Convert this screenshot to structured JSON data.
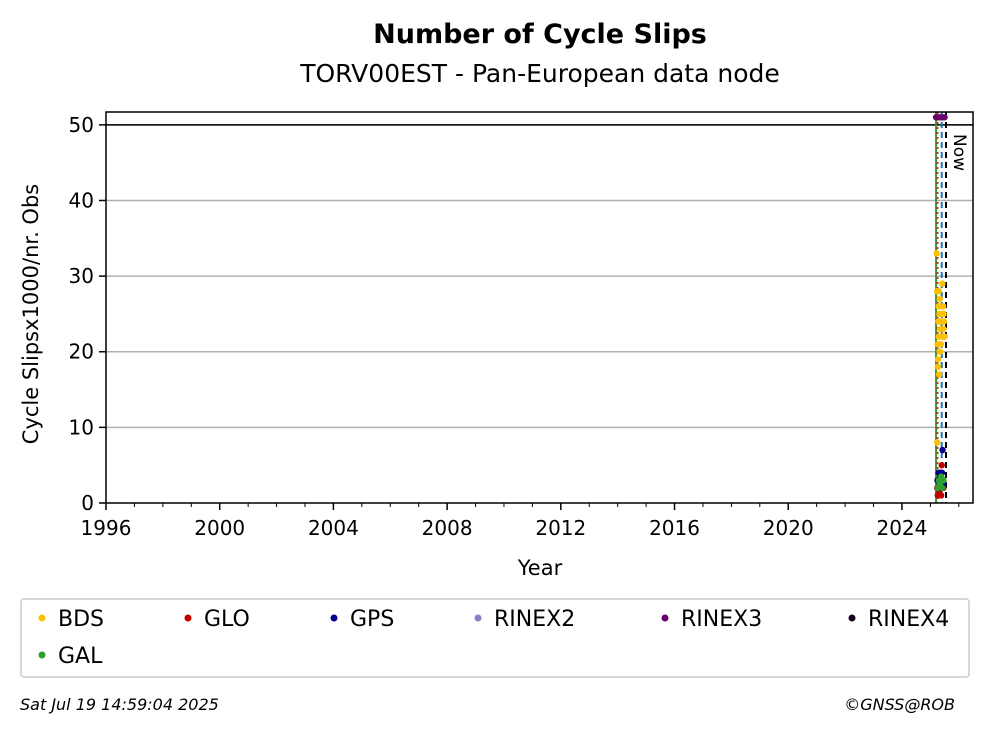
{
  "chart_data": {
    "type": "scatter",
    "title": "Number of Cycle Slips",
    "subtitle": "TORV00EST - Pan-European data node",
    "xlabel": "Year",
    "ylabel": "Cycle Slipsx1000/nr. Obs",
    "xlim": [
      1996,
      2026.5
    ],
    "ylim": [
      0,
      51.7
    ],
    "x_ticks": [
      1996,
      2000,
      2004,
      2008,
      2012,
      2016,
      2020,
      2024
    ],
    "y_ticks": [
      0,
      10,
      20,
      30,
      40,
      50
    ],
    "grid": "horizontal",
    "threshold_line": 50,
    "now_marker": {
      "label": "Now",
      "x": 2025.55
    },
    "vertical_lines": [
      {
        "x": 2025.2,
        "color": "#2ca02c",
        "style": "solid"
      },
      {
        "x": 2025.25,
        "color": "#d62728",
        "style": "dotted"
      },
      {
        "x": 2025.4,
        "color": "#1f77b4",
        "style": "dashed"
      },
      {
        "x": 2025.55,
        "color": "#000000",
        "style": "dashed"
      }
    ],
    "legend_position": "bottom",
    "series": [
      {
        "name": "BDS",
        "color": "#ffc000",
        "points": [
          [
            2025.22,
            33
          ],
          [
            2025.24,
            28
          ],
          [
            2025.25,
            21
          ],
          [
            2025.27,
            19
          ],
          [
            2025.28,
            24
          ],
          [
            2025.29,
            26
          ],
          [
            2025.3,
            22
          ],
          [
            2025.31,
            17
          ],
          [
            2025.32,
            25
          ],
          [
            2025.33,
            27
          ],
          [
            2025.34,
            20
          ],
          [
            2025.35,
            23
          ],
          [
            2025.36,
            24
          ],
          [
            2025.37,
            21
          ],
          [
            2025.38,
            26
          ],
          [
            2025.39,
            22
          ],
          [
            2025.4,
            25
          ],
          [
            2025.41,
            23
          ],
          [
            2025.42,
            29
          ],
          [
            2025.43,
            24
          ],
          [
            2025.44,
            22
          ],
          [
            2025.45,
            26
          ],
          [
            2025.46,
            23
          ],
          [
            2025.47,
            25
          ],
          [
            2025.48,
            24
          ],
          [
            2025.5,
            22
          ],
          [
            2025.24,
            8
          ],
          [
            2025.26,
            18
          ],
          [
            2025.3,
            28
          ],
          [
            2025.33,
            20
          ]
        ]
      },
      {
        "name": "GLO",
        "color": "#c00000",
        "points": [
          [
            2025.24,
            2
          ],
          [
            2025.26,
            1
          ],
          [
            2025.28,
            3
          ],
          [
            2025.3,
            2
          ],
          [
            2025.32,
            1.5
          ],
          [
            2025.34,
            2.5
          ],
          [
            2025.36,
            4
          ],
          [
            2025.38,
            1
          ],
          [
            2025.4,
            5
          ],
          [
            2025.42,
            2
          ],
          [
            2025.44,
            3
          ],
          [
            2025.46,
            2
          ]
        ]
      },
      {
        "name": "GPS",
        "color": "#00008b",
        "points": [
          [
            2025.25,
            3
          ],
          [
            2025.27,
            2
          ],
          [
            2025.29,
            4
          ],
          [
            2025.31,
            3
          ],
          [
            2025.33,
            2.5
          ],
          [
            2025.35,
            3.5
          ],
          [
            2025.37,
            2
          ],
          [
            2025.39,
            3
          ],
          [
            2025.41,
            4
          ],
          [
            2025.43,
            7
          ],
          [
            2025.45,
            3
          ],
          [
            2025.47,
            2.5
          ]
        ]
      },
      {
        "name": "RINEX2",
        "color": "#8c7fc4",
        "points": []
      },
      {
        "name": "RINEX3",
        "color": "#6a006a",
        "points": [
          [
            2025.2,
            51
          ],
          [
            2025.26,
            51
          ],
          [
            2025.32,
            51
          ],
          [
            2025.38,
            51
          ],
          [
            2025.44,
            51
          ],
          [
            2025.5,
            51
          ]
        ]
      },
      {
        "name": "RINEX4",
        "color": "#1a0020",
        "points": []
      },
      {
        "name": "GAL",
        "color": "#2ca02c",
        "points": [
          [
            2025.26,
            2
          ],
          [
            2025.3,
            3
          ],
          [
            2025.34,
            2.5
          ],
          [
            2025.38,
            3.5
          ],
          [
            2025.42,
            2
          ],
          [
            2025.46,
            3
          ]
        ]
      }
    ]
  },
  "footer": {
    "timestamp": "Sat Jul 19 14:59:04 2025",
    "copyright": "©GNSS@ROB"
  }
}
